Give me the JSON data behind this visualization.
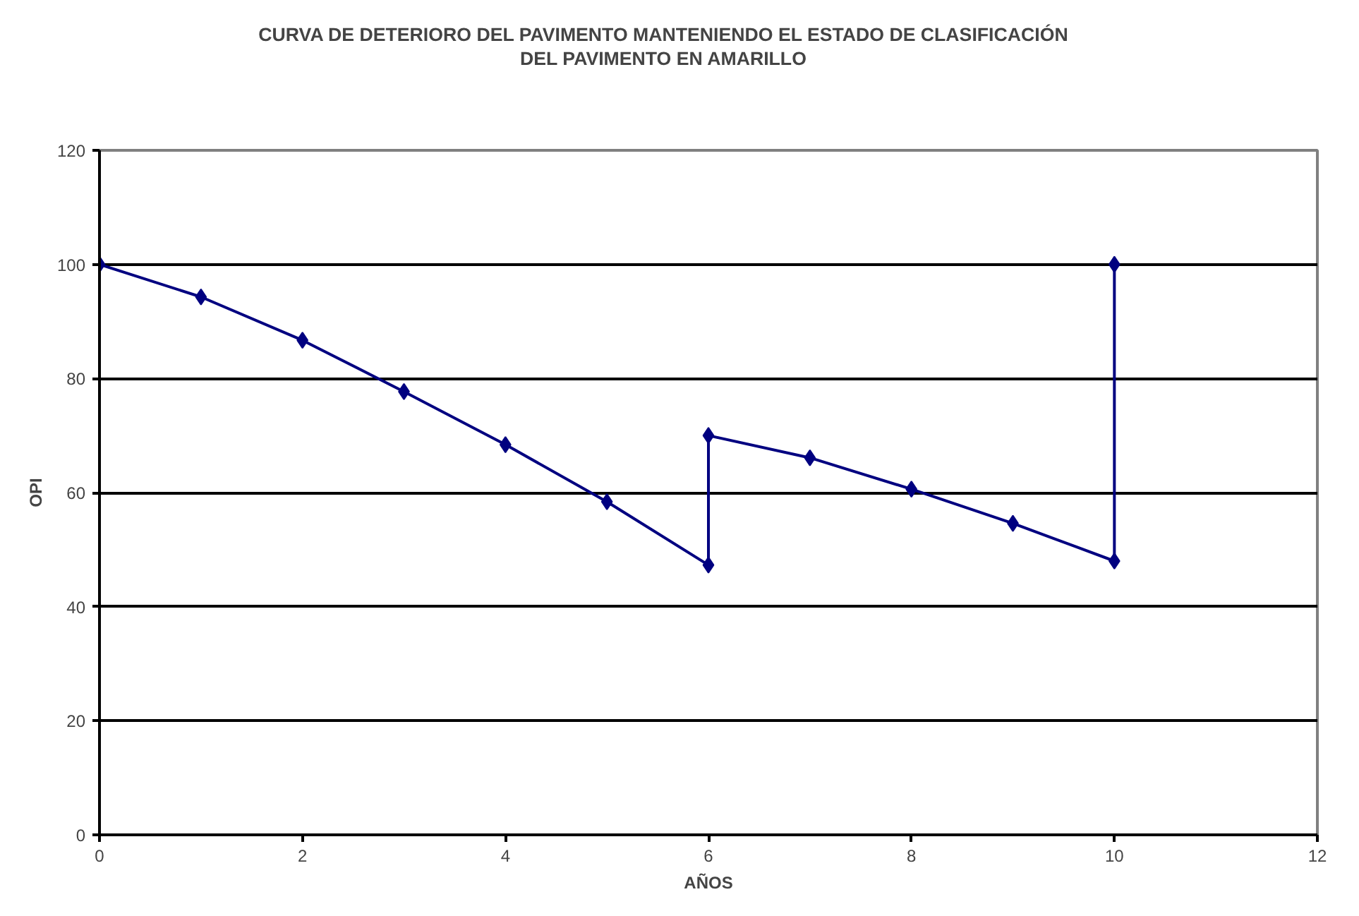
{
  "chart_data": {
    "type": "line",
    "title": "CURVA DE DETERIORO DEL PAVIMENTO MANTENIENDO EL ESTADO DE CLASIFICACIÓN\nDEL PAVIMENTO EN AMARILLO",
    "xlabel": "AÑOS",
    "ylabel": "OPI",
    "x": [
      0,
      1,
      2,
      3,
      4,
      5,
      6,
      6,
      7,
      8,
      9,
      10,
      10
    ],
    "series": [
      {
        "color": "#000080",
        "values": [
          100,
          94.3,
          86.7,
          77.7,
          68.4,
          58.4,
          47.3,
          70.0,
          66.1,
          60.6,
          54.6,
          48.0,
          100
        ]
      }
    ],
    "xlim": [
      0,
      12
    ],
    "xticks": [
      0,
      2,
      4,
      6,
      8,
      10,
      12
    ],
    "ylim": [
      0,
      120
    ],
    "yticks": [
      0,
      20,
      40,
      60,
      80,
      100,
      120
    ],
    "grid": "y",
    "marker": "diamond",
    "line_style": "solid"
  }
}
